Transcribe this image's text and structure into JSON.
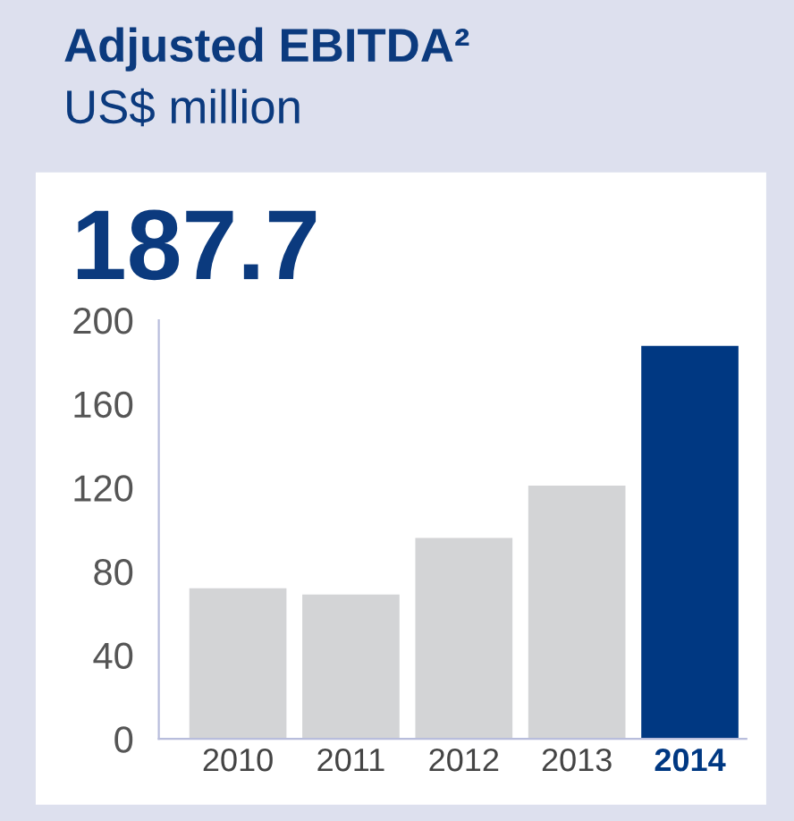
{
  "chart_data": {
    "type": "bar",
    "title": "Adjusted EBITDA²",
    "subtitle": "US$ million",
    "annotations": [
      "187.7"
    ],
    "categories": [
      "2010",
      "2011",
      "2012",
      "2013",
      "2014"
    ],
    "values": [
      72,
      69,
      96,
      121,
      187.7
    ],
    "colors": [
      "#d3d4d6",
      "#d3d4d6",
      "#d3d4d6",
      "#d3d4d6",
      "#003882"
    ],
    "ylim": [
      0,
      200
    ],
    "yticks": [
      0,
      40,
      80,
      120,
      160,
      200
    ],
    "grid": false
  }
}
